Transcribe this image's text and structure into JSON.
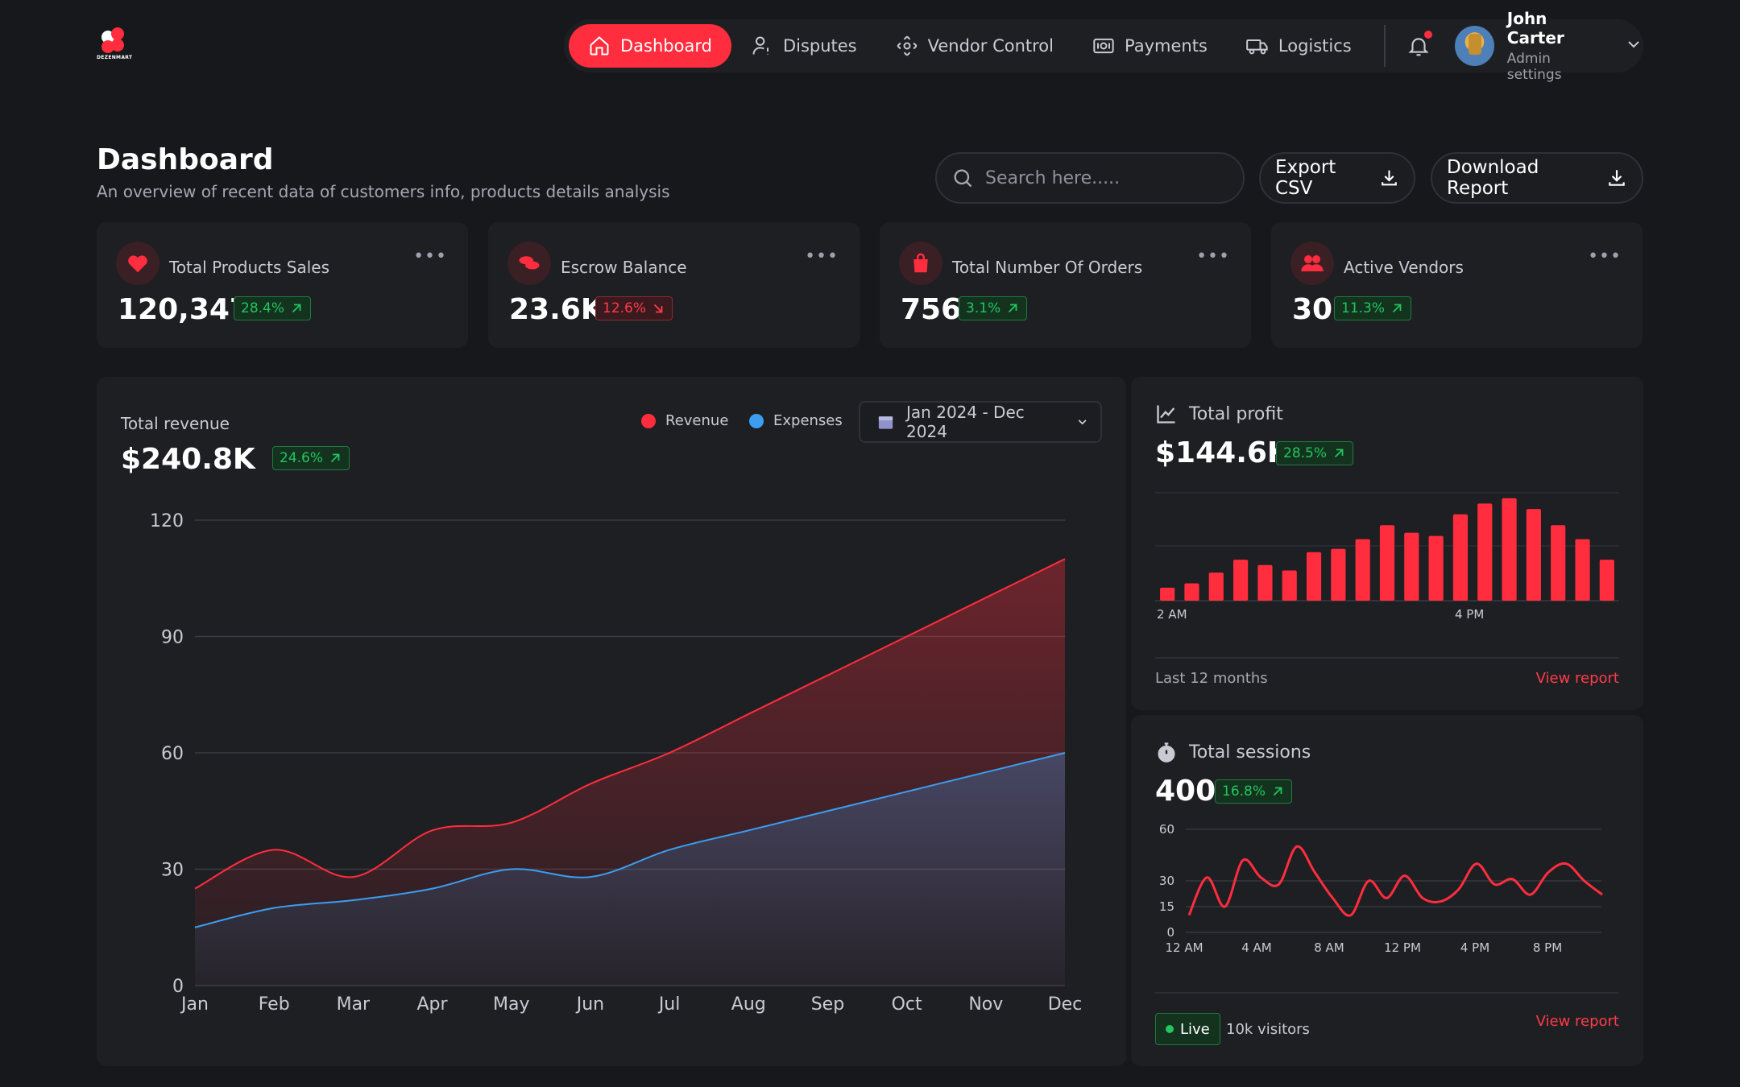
{
  "brand": {
    "name": "DEZENMART"
  },
  "nav": {
    "items": [
      {
        "label": "Dashboard",
        "icon": "home-icon",
        "active": true
      },
      {
        "label": "Disputes",
        "icon": "user-alert-icon",
        "active": false
      },
      {
        "label": "Vendor Control",
        "icon": "move-arrows-icon",
        "active": false
      },
      {
        "label": "Payments",
        "icon": "banknote-icon",
        "active": false
      },
      {
        "label": "Logistics",
        "icon": "truck-icon",
        "active": false
      }
    ],
    "user": {
      "name": "John Carter",
      "role": "Admin settings"
    }
  },
  "header": {
    "title": "Dashboard",
    "subtitle": "An overview of recent data of customers info, products details analysis",
    "search_placeholder": "Search here.....",
    "export_label": "Export CSV",
    "download_label": "Download Report"
  },
  "stats": [
    {
      "label": "Total Products Sales",
      "value": "120,347",
      "change": "28.4%",
      "trend": "up",
      "icon": "heart-icon"
    },
    {
      "label": "Escrow Balance",
      "value": "23.6K",
      "change": "12.6%",
      "trend": "down",
      "icon": "coins-icon"
    },
    {
      "label": "Total Number Of Orders",
      "value": "756",
      "change": "3.1%",
      "trend": "up",
      "icon": "shopping-bag-icon"
    },
    {
      "label": "Active Vendors",
      "value": "30",
      "change": "11.3%",
      "trend": "up",
      "icon": "users-icon"
    }
  ],
  "revenue": {
    "title": "Total revenue",
    "value": "$240.8K",
    "change": "24.6%",
    "legend": [
      {
        "name": "Revenue",
        "color": "#ff2d3d"
      },
      {
        "name": "Expenses",
        "color": "#3b9ef0"
      }
    ],
    "date_range": "Jan 2024 - Dec 2024"
  },
  "profit": {
    "title": "Total profit",
    "value": "$144.6K",
    "change": "28.5%",
    "footer": "Last 12 months",
    "link": "View report"
  },
  "sessions": {
    "title": "Total sessions",
    "value": "400",
    "change": "16.8%",
    "live_label": "Live",
    "visitors": "10k visitors",
    "link": "View report"
  },
  "chart_data": [
    {
      "type": "area",
      "categories": [
        "Jan",
        "Feb",
        "Mar",
        "Apr",
        "May",
        "Jun",
        "Jul",
        "Aug",
        "Sep",
        "Oct",
        "Nov",
        "Dec"
      ],
      "yticks": [
        0,
        30,
        60,
        90,
        120
      ],
      "ylim": [
        0,
        120
      ],
      "grid": true,
      "series": [
        {
          "name": "Revenue",
          "color": "#ff2d3d",
          "values": [
            25,
            35,
            28,
            40,
            42,
            52,
            60,
            70,
            80,
            90,
            100,
            110
          ]
        },
        {
          "name": "Expenses",
          "color": "#3b9ef0",
          "values": [
            15,
            20,
            22,
            25,
            30,
            28,
            35,
            40,
            45,
            50,
            55,
            60
          ]
        }
      ]
    },
    {
      "type": "bar",
      "xticks": [
        "2 AM",
        "4 PM"
      ],
      "color": "#ff2d3d",
      "values": [
        12,
        16,
        26,
        38,
        33,
        28,
        45,
        48,
        57,
        70,
        63,
        60,
        80,
        90,
        95,
        85,
        70,
        57,
        38
      ]
    },
    {
      "type": "line",
      "xticks": [
        "12 AM",
        "4 AM",
        "8 AM",
        "12 PM",
        "4 PM",
        "8 PM"
      ],
      "yticks": [
        0,
        15,
        30,
        60
      ],
      "ylim": [
        0,
        60
      ],
      "color": "#ff2d3d",
      "values": [
        10,
        32,
        15,
        42,
        32,
        28,
        50,
        35,
        20,
        10,
        30,
        20,
        33,
        20,
        18,
        25,
        40,
        28,
        31,
        22,
        35,
        40,
        30,
        22
      ]
    }
  ]
}
